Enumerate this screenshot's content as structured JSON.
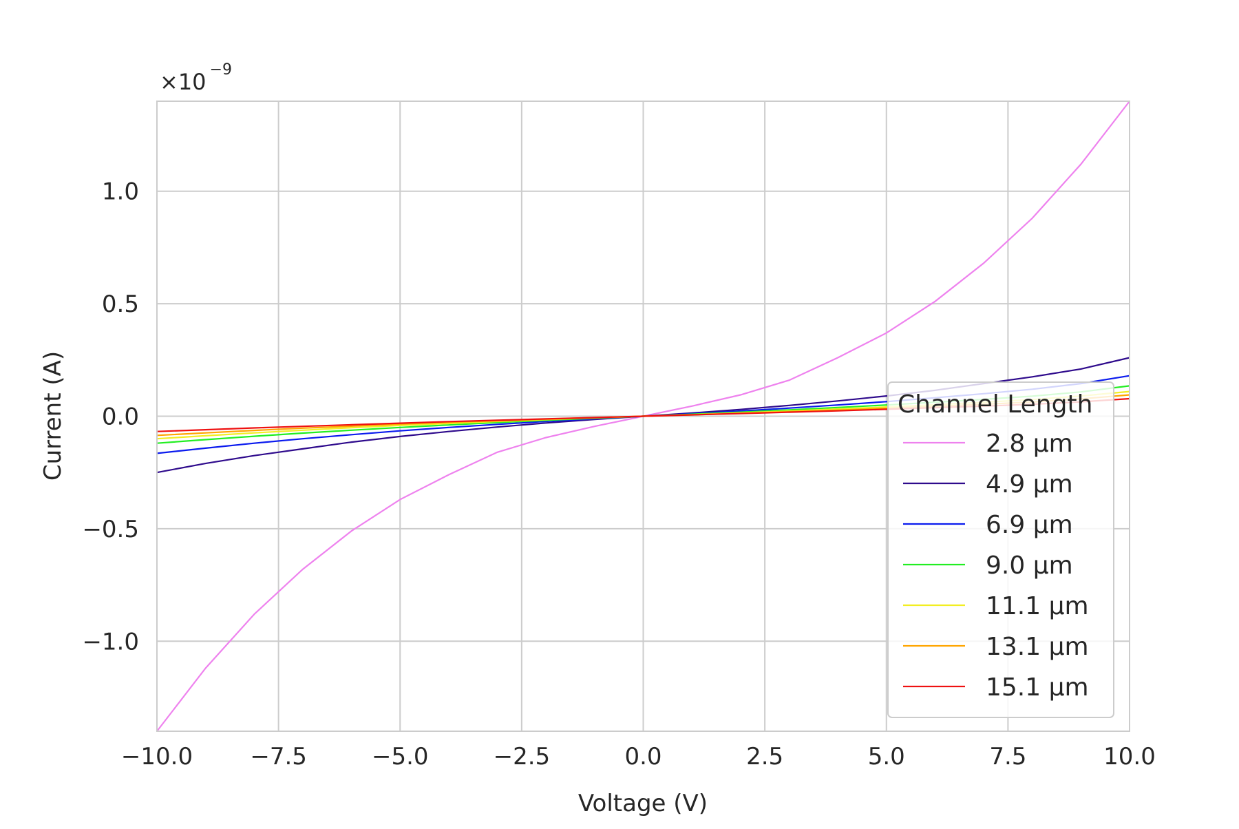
{
  "chart_data": {
    "type": "line",
    "xlabel": "Voltage (V)",
    "ylabel": "Current (A)",
    "y_multiplier_text": "×10",
    "y_multiplier_exponent": "−9",
    "xlim": [
      -10,
      10
    ],
    "ylim": [
      -1.4,
      1.4
    ],
    "x_ticks": [
      -10,
      -7.5,
      -5,
      -2.5,
      0,
      2.5,
      5,
      7.5,
      10
    ],
    "x_tick_labels": [
      "−10.0",
      "−7.5",
      "−5.0",
      "−2.5",
      "0.0",
      "2.5",
      "5.0",
      "7.5",
      "10.0"
    ],
    "y_ticks": [
      -1.0,
      -0.5,
      0.0,
      0.5,
      1.0
    ],
    "y_tick_labels": [
      "−1.0",
      "−0.5",
      "0.0",
      "0.5",
      "1.0"
    ],
    "grid": true,
    "legend_title": "Channel Length",
    "legend_placement": "lower-right",
    "x": [
      -10,
      -9,
      -8,
      -7,
      -6,
      -5,
      -4,
      -3,
      -2,
      -1,
      0,
      1,
      2,
      3,
      4,
      5,
      6,
      7,
      8,
      9,
      10
    ],
    "series": [
      {
        "name": "2.8 µm",
        "color": "#ee82ee",
        "y": [
          -1.4,
          -1.12,
          -0.88,
          -0.68,
          -0.51,
          -0.37,
          -0.26,
          -0.16,
          -0.095,
          -0.045,
          0.0,
          0.045,
          0.095,
          0.16,
          0.26,
          0.37,
          0.51,
          0.68,
          0.88,
          1.12,
          1.4
        ]
      },
      {
        "name": "4.9 µm",
        "color": "#2e0a8c",
        "y": [
          -0.25,
          -0.21,
          -0.175,
          -0.145,
          -0.115,
          -0.09,
          -0.068,
          -0.048,
          -0.03,
          -0.014,
          0.0,
          0.014,
          0.03,
          0.048,
          0.068,
          0.09,
          0.115,
          0.145,
          0.175,
          0.21,
          0.26
        ]
      },
      {
        "name": "6.9 µm",
        "color": "#0a1aee",
        "y": [
          -0.165,
          -0.142,
          -0.12,
          -0.1,
          -0.082,
          -0.065,
          -0.05,
          -0.036,
          -0.023,
          -0.011,
          0.0,
          0.011,
          0.023,
          0.036,
          0.05,
          0.065,
          0.082,
          0.1,
          0.12,
          0.145,
          0.18
        ]
      },
      {
        "name": "9.0 µm",
        "color": "#22ee22",
        "y": [
          -0.12,
          -0.104,
          -0.089,
          -0.075,
          -0.062,
          -0.05,
          -0.039,
          -0.028,
          -0.018,
          -0.009,
          0.0,
          0.009,
          0.018,
          0.028,
          0.039,
          0.05,
          0.062,
          0.075,
          0.089,
          0.108,
          0.135
        ]
      },
      {
        "name": "11.1 µm",
        "color": "#f2ee22",
        "y": [
          -0.1,
          -0.087,
          -0.074,
          -0.062,
          -0.051,
          -0.041,
          -0.032,
          -0.023,
          -0.015,
          -0.007,
          0.0,
          0.007,
          0.015,
          0.023,
          0.032,
          0.041,
          0.051,
          0.062,
          0.074,
          0.09,
          0.11
        ]
      },
      {
        "name": "13.1 µm",
        "color": "#ffa500",
        "y": [
          -0.085,
          -0.074,
          -0.063,
          -0.053,
          -0.044,
          -0.035,
          -0.027,
          -0.02,
          -0.013,
          -0.006,
          0.0,
          0.006,
          0.013,
          0.02,
          0.027,
          0.035,
          0.044,
          0.053,
          0.063,
          0.077,
          0.095
        ]
      },
      {
        "name": "15.1 µm",
        "color": "#ee1111",
        "y": [
          -0.068,
          -0.06,
          -0.052,
          -0.045,
          -0.038,
          -0.031,
          -0.024,
          -0.018,
          -0.012,
          -0.006,
          0.0,
          0.006,
          0.012,
          0.018,
          0.024,
          0.031,
          0.038,
          0.045,
          0.053,
          0.064,
          0.078
        ]
      }
    ]
  }
}
